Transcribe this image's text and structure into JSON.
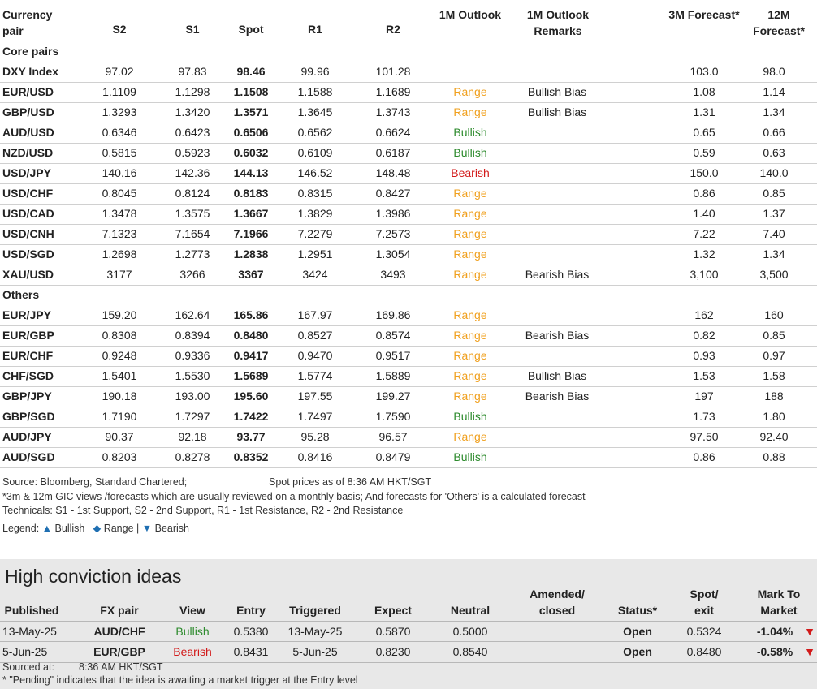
{
  "header": {
    "pair": "Currency pair",
    "s2": "S2",
    "s1": "S1",
    "spot": "Spot",
    "r1": "R1",
    "r2": "R2",
    "outlook": "1M Outlook",
    "remarks": "1M Outlook Remarks",
    "f3m": "3M Forecast*",
    "f12m": "12M Forecast*"
  },
  "sections": {
    "core": "Core pairs",
    "others": "Others"
  },
  "core_rows": [
    {
      "pair": "DXY Index",
      "s2": "97.02",
      "s1": "97.83",
      "spot": "98.46",
      "r1": "99.96",
      "r2": "101.28",
      "outlook": "",
      "remark": "",
      "f3": "103.0",
      "f12": "98.0"
    },
    {
      "pair": "EUR/USD",
      "s2": "1.1109",
      "s1": "1.1298",
      "spot": "1.1508",
      "r1": "1.1588",
      "r2": "1.1689",
      "outlook": "Range",
      "remark": "Bullish Bias",
      "f3": "1.08",
      "f12": "1.14"
    },
    {
      "pair": "GBP/USD",
      "s2": "1.3293",
      "s1": "1.3420",
      "spot": "1.3571",
      "r1": "1.3645",
      "r2": "1.3743",
      "outlook": "Range",
      "remark": "Bullish Bias",
      "f3": "1.31",
      "f12": "1.34"
    },
    {
      "pair": "AUD/USD",
      "s2": "0.6346",
      "s1": "0.6423",
      "spot": "0.6506",
      "r1": "0.6562",
      "r2": "0.6624",
      "outlook": "Bullish",
      "remark": "",
      "f3": "0.65",
      "f12": "0.66"
    },
    {
      "pair": "NZD/USD",
      "s2": "0.5815",
      "s1": "0.5923",
      "spot": "0.6032",
      "r1": "0.6109",
      "r2": "0.6187",
      "outlook": "Bullish",
      "remark": "",
      "f3": "0.59",
      "f12": "0.63"
    },
    {
      "pair": "USD/JPY",
      "s2": "140.16",
      "s1": "142.36",
      "spot": "144.13",
      "r1": "146.52",
      "r2": "148.48",
      "outlook": "Bearish",
      "remark": "",
      "f3": "150.0",
      "f12": "140.0"
    },
    {
      "pair": "USD/CHF",
      "s2": "0.8045",
      "s1": "0.8124",
      "spot": "0.8183",
      "r1": "0.8315",
      "r2": "0.8427",
      "outlook": "Range",
      "remark": "",
      "f3": "0.86",
      "f12": "0.85"
    },
    {
      "pair": "USD/CAD",
      "s2": "1.3478",
      "s1": "1.3575",
      "spot": "1.3667",
      "r1": "1.3829",
      "r2": "1.3986",
      "outlook": "Range",
      "remark": "",
      "f3": "1.40",
      "f12": "1.37"
    },
    {
      "pair": "USD/CNH",
      "s2": "7.1323",
      "s1": "7.1654",
      "spot": "7.1966",
      "r1": "7.2279",
      "r2": "7.2573",
      "outlook": "Range",
      "remark": "",
      "f3": "7.22",
      "f12": "7.40"
    },
    {
      "pair": "USD/SGD",
      "s2": "1.2698",
      "s1": "1.2773",
      "spot": "1.2838",
      "r1": "1.2951",
      "r2": "1.3054",
      "outlook": "Range",
      "remark": "",
      "f3": "1.32",
      "f12": "1.34"
    },
    {
      "pair": "XAU/USD",
      "s2": "3177",
      "s1": "3266",
      "spot": "3367",
      "r1": "3424",
      "r2": "3493",
      "outlook": "Range",
      "remark": "Bearish Bias",
      "f3": "3,100",
      "f12": "3,500"
    }
  ],
  "other_rows": [
    {
      "pair": "EUR/JPY",
      "s2": "159.20",
      "s1": "162.64",
      "spot": "165.86",
      "r1": "167.97",
      "r2": "169.86",
      "outlook": "Range",
      "remark": "",
      "f3": "162",
      "f12": "160"
    },
    {
      "pair": "EUR/GBP",
      "s2": "0.8308",
      "s1": "0.8394",
      "spot": "0.8480",
      "r1": "0.8527",
      "r2": "0.8574",
      "outlook": "Range",
      "remark": "Bearish Bias",
      "f3": "0.82",
      "f12": "0.85"
    },
    {
      "pair": "EUR/CHF",
      "s2": "0.9248",
      "s1": "0.9336",
      "spot": "0.9417",
      "r1": "0.9470",
      "r2": "0.9517",
      "outlook": "Range",
      "remark": "",
      "f3": "0.93",
      "f12": "0.97"
    },
    {
      "pair": "CHF/SGD",
      "s2": "1.5401",
      "s1": "1.5530",
      "spot": "1.5689",
      "r1": "1.5774",
      "r2": "1.5889",
      "outlook": "Range",
      "remark": "Bullish Bias",
      "f3": "1.53",
      "f12": "1.58"
    },
    {
      "pair": "GBP/JPY",
      "s2": "190.18",
      "s1": "193.00",
      "spot": "195.60",
      "r1": "197.55",
      "r2": "199.27",
      "outlook": "Range",
      "remark": "Bearish Bias",
      "f3": "197",
      "f12": "188"
    },
    {
      "pair": "GBP/SGD",
      "s2": "1.7190",
      "s1": "1.7297",
      "spot": "1.7422",
      "r1": "1.7497",
      "r2": "1.7590",
      "outlook": "Bullish",
      "remark": "",
      "f3": "1.73",
      "f12": "1.80"
    },
    {
      "pair": "AUD/JPY",
      "s2": "90.37",
      "s1": "92.18",
      "spot": "93.77",
      "r1": "95.28",
      "r2": "96.57",
      "outlook": "Range",
      "remark": "",
      "f3": "97.50",
      "f12": "92.40"
    },
    {
      "pair": "AUD/SGD",
      "s2": "0.8203",
      "s1": "0.8278",
      "spot": "0.8352",
      "r1": "0.8416",
      "r2": "0.8479",
      "outlook": "Bullish",
      "remark": "",
      "f3": "0.86",
      "f12": "0.88"
    }
  ],
  "notes": {
    "source": "Source: Bloomberg, Standard Chartered;",
    "spot_time": "Spot prices as of 8:36 AM HKT/SGT",
    "forecast_note": "*3m & 12m GIC views /forecasts which are usually reviewed on a monthly basis; And forecasts for 'Others' is a calculated forecast",
    "technicals": "Technicals: S1 - 1st Support, S2 - 2nd Support, R1 - 1st Resistance, R2 - 2nd Resistance",
    "legend_label": "Legend:",
    "legend_bullish": "Bullish",
    "legend_range": "Range",
    "legend_bearish": "Bearish",
    "legend_sep": "|",
    "legend_up_glyph": "▲",
    "legend_diamond_glyph": "◆",
    "legend_down_glyph": "▼"
  },
  "high_conviction": {
    "title": "High conviction ideas",
    "headers": {
      "published": "Published",
      "fx_pair": "FX pair",
      "view": "View",
      "entry": "Entry",
      "triggered": "Triggered",
      "expect": "Expect",
      "neutral": "Neutral",
      "amended": "Amended/ closed",
      "status": "Status*",
      "spot": "Spot/ exit",
      "mtm": "Mark To Market"
    },
    "rows": [
      {
        "published": "13-May-25",
        "pair": "AUD/CHF",
        "view": "Bullish",
        "entry": "0.5380",
        "triggered": "13-May-25",
        "expect": "0.5870",
        "neutral": "0.5000",
        "amended": "",
        "status": "Open",
        "spot": "0.5324",
        "mtm": "-1.04%",
        "arrow": "▼"
      },
      {
        "published": "5-Jun-25",
        "pair": "EUR/GBP",
        "view": "Bearish",
        "entry": "0.8431",
        "triggered": "5-Jun-25",
        "expect": "0.8230",
        "neutral": "0.8540",
        "amended": "",
        "status": "Open",
        "spot": "0.8480",
        "mtm": "-0.58%",
        "arrow": "▼"
      }
    ],
    "sourced_label": "Sourced at:",
    "sourced_time": "8:36 AM HKT/SGT",
    "pending_note": "* \"Pending\" indicates that the idea is awaiting a market trigger at the Entry level"
  },
  "colors": {
    "bullish": "#2e8b2e",
    "range": "#f0a01e",
    "bearish": "#d21a1a",
    "legend_blue": "#1f6fb2"
  }
}
